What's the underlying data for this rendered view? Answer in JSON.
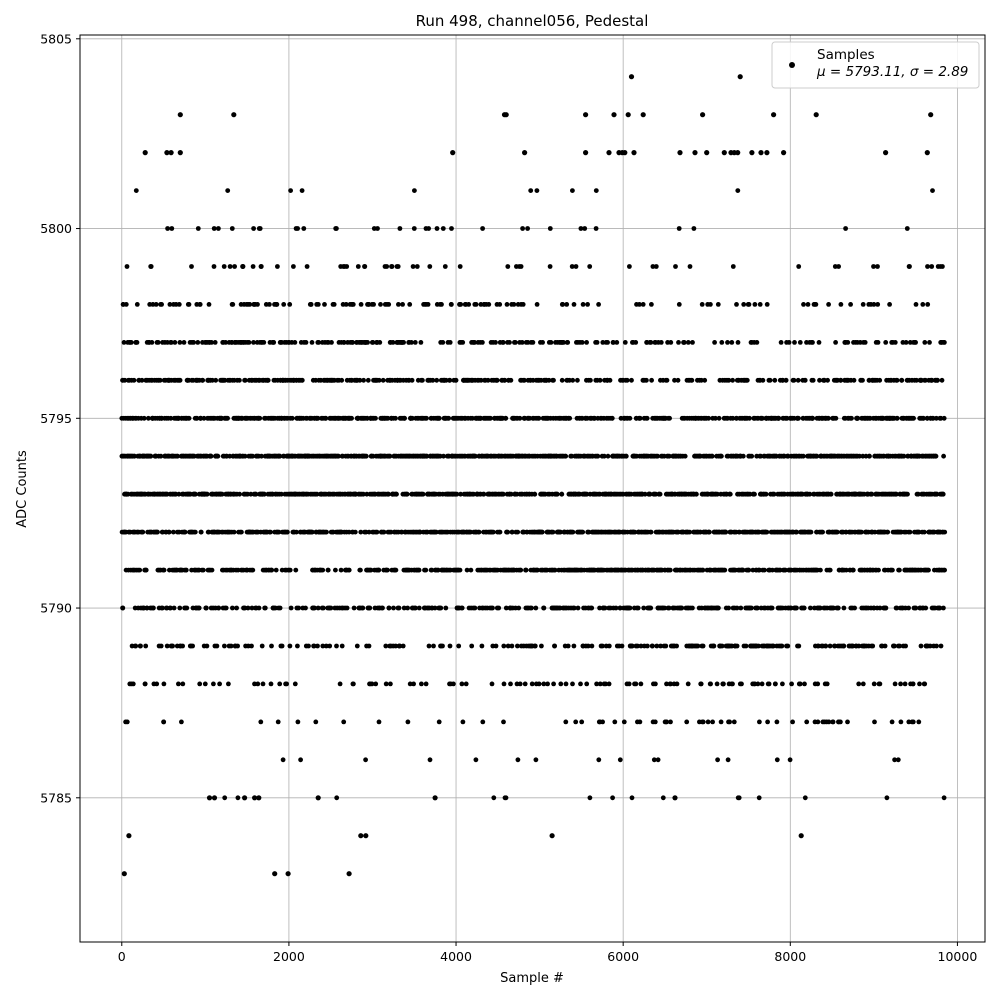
{
  "chart_data": {
    "type": "scatter",
    "title": "Run 498, channel056, Pedestal",
    "xlabel": "Sample #",
    "ylabel": "ADC Counts",
    "xlim": [
      -500,
      10330
    ],
    "ylim": [
      5781.2,
      5805.1
    ],
    "xticks": [
      0,
      2000,
      4000,
      6000,
      8000,
      10000
    ],
    "yticks": [
      5785,
      5790,
      5795,
      5800,
      5805
    ],
    "grid": true,
    "legend_position": "top-right",
    "marker_color": "#000000",
    "series": [
      {
        "name": "Samples",
        "stats_label": "μ = 5793.11, σ = 2.89",
        "n_samples": 9850,
        "x_range": [
          0,
          9850
        ],
        "mean": 5793.11,
        "sigma": 2.89,
        "values_are_integer_adc_counts": true,
        "isolated_points": [
          {
            "x": 30,
            "y": 5783
          },
          {
            "x": 85,
            "y": 5784
          },
          {
            "x": 1830,
            "y": 5783
          },
          {
            "x": 1990,
            "y": 5783
          },
          {
            "x": 2720,
            "y": 5783
          },
          {
            "x": 2860,
            "y": 5784
          },
          {
            "x": 2920,
            "y": 5784
          },
          {
            "x": 5150,
            "y": 5784
          },
          {
            "x": 8130,
            "y": 5784
          },
          {
            "x": 6100,
            "y": 5804
          },
          {
            "x": 7400,
            "y": 5804
          },
          {
            "x": 700,
            "y": 5803
          },
          {
            "x": 1340,
            "y": 5803
          },
          {
            "x": 4580,
            "y": 5803
          },
          {
            "x": 4600,
            "y": 5803
          },
          {
            "x": 5550,
            "y": 5803
          },
          {
            "x": 5890,
            "y": 5803
          },
          {
            "x": 6060,
            "y": 5803
          },
          {
            "x": 6240,
            "y": 5803
          },
          {
            "x": 6950,
            "y": 5803
          },
          {
            "x": 7800,
            "y": 5803
          },
          {
            "x": 8310,
            "y": 5803
          },
          {
            "x": 9680,
            "y": 5803
          },
          {
            "x": 280,
            "y": 5802
          },
          {
            "x": 540,
            "y": 5802
          },
          {
            "x": 590,
            "y": 5802
          },
          {
            "x": 700,
            "y": 5802
          },
          {
            "x": 3960,
            "y": 5802
          },
          {
            "x": 4820,
            "y": 5802
          },
          {
            "x": 5550,
            "y": 5802
          },
          {
            "x": 5830,
            "y": 5802
          },
          {
            "x": 5950,
            "y": 5802
          },
          {
            "x": 5990,
            "y": 5802
          },
          {
            "x": 6020,
            "y": 5802
          },
          {
            "x": 6130,
            "y": 5802
          },
          {
            "x": 6680,
            "y": 5802
          },
          {
            "x": 6860,
            "y": 5802
          },
          {
            "x": 7000,
            "y": 5802
          },
          {
            "x": 7210,
            "y": 5802
          },
          {
            "x": 7290,
            "y": 5802
          },
          {
            "x": 7330,
            "y": 5802
          },
          {
            "x": 7370,
            "y": 5802
          },
          {
            "x": 7540,
            "y": 5802
          },
          {
            "x": 7650,
            "y": 5802
          },
          {
            "x": 7720,
            "y": 5802
          },
          {
            "x": 7920,
            "y": 5802
          },
          {
            "x": 9140,
            "y": 5802
          },
          {
            "x": 9640,
            "y": 5802
          },
          {
            "x": 6620,
            "y": 5785
          },
          {
            "x": 3750,
            "y": 5785
          },
          {
            "x": 2350,
            "y": 5785
          },
          {
            "x": 1050,
            "y": 5785
          },
          {
            "x": 1110,
            "y": 5785
          },
          {
            "x": 1470,
            "y": 5785
          },
          {
            "x": 1590,
            "y": 5785
          },
          {
            "x": 1640,
            "y": 5785
          }
        ]
      }
    ]
  }
}
